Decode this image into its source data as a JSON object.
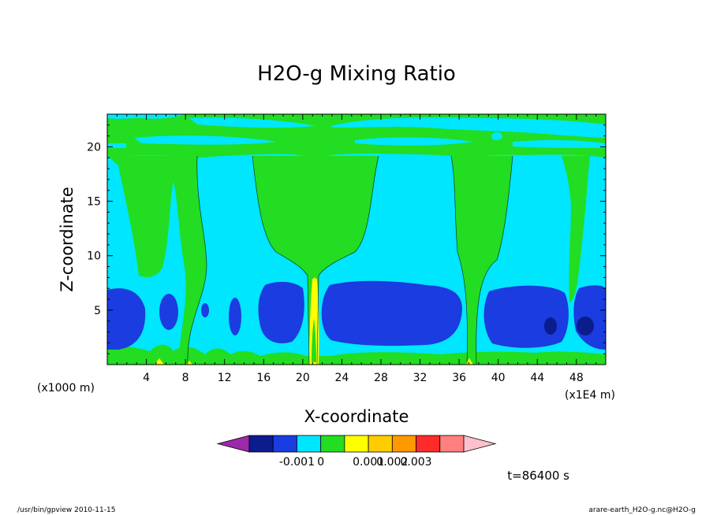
{
  "chart_data": {
    "type": "heatmap",
    "title": "H2O-g Mixing Ratio",
    "xlabel": "X-coordinate",
    "ylabel": "Z-coordinate",
    "x_units_left": "(x1000 m)",
    "x_units_right": "(x1E4 m)",
    "xlim": [
      0,
      51
    ],
    "ylim": [
      0,
      23
    ],
    "x_ticks": [
      4,
      8,
      12,
      16,
      20,
      24,
      28,
      32,
      36,
      40,
      44,
      48
    ],
    "y_ticks": [
      5,
      10,
      15,
      20
    ],
    "colorbar": {
      "colors": [
        "#9a2aa8",
        "#0c1c8c",
        "#1a3ce0",
        "#00e6ff",
        "#22dd22",
        "#ffff00",
        "#ffcc00",
        "#ff9900",
        "#ff2a2a",
        "#ff7f7f",
        "#ffc0cc"
      ],
      "labels": [
        "-0.001",
        "0",
        "0.001",
        "0.002",
        "0.003"
      ]
    },
    "time_label": "t=86400 s",
    "footer_left": "/usr/bin/gpview  2010-11-15",
    "footer_right": "arare-earth_H2O-g.nc@H2O-g"
  }
}
